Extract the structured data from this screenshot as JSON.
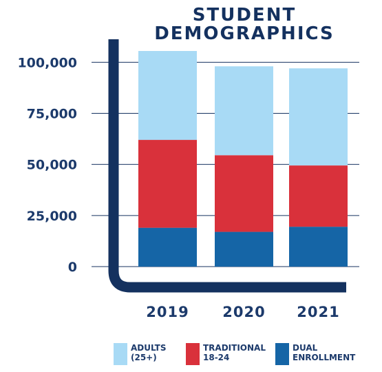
{
  "chart_data": {
    "type": "bar",
    "stacked": true,
    "title": [
      "STUDENT",
      "DEMOGRAPHICS"
    ],
    "categories": [
      "2019",
      "2020",
      "2021"
    ],
    "series": [
      {
        "name": "DUAL\nENROLLMENT",
        "color": "#1565a6",
        "values": [
          19000,
          17000,
          19500
        ]
      },
      {
        "name": "TRADITIONAL\n18-24",
        "color": "#d9313b",
        "values": [
          43000,
          37500,
          30000
        ]
      },
      {
        "name": "ADULTS\n(25+)",
        "color": "#a8daf5",
        "values": [
          43500,
          43500,
          47500
        ]
      }
    ],
    "y_ticks": [
      "100,000",
      "75,000",
      "50,000",
      "25,000",
      "0"
    ],
    "y_tick_values": [
      100000,
      75000,
      50000,
      25000,
      0
    ],
    "ylim": [
      0,
      105500
    ],
    "grid": true,
    "legend_position": "bottom",
    "colors": {
      "axis": "#14315f",
      "text": "#1c3a6b",
      "grid": "#14315f"
    }
  }
}
